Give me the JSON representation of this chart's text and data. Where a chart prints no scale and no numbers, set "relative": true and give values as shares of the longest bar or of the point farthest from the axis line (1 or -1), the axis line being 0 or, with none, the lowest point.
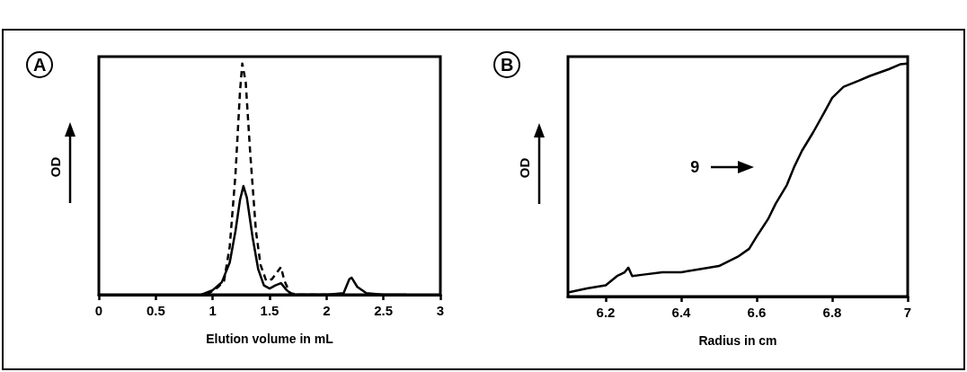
{
  "chart_data": [
    {
      "type": "line",
      "title": "A",
      "xlabel": "Elution volume in mL",
      "ylabel": "OD",
      "relative": true,
      "xlim": [
        0,
        3
      ],
      "xticks": [
        0,
        0.5,
        1,
        1.5,
        2,
        2.5,
        3
      ],
      "marker": "none",
      "grid": false,
      "series": [
        {
          "color": "#000000",
          "line_style": "solid",
          "x": [
            0.9,
            1.0,
            1.08,
            1.15,
            1.2,
            1.24,
            1.27,
            1.3,
            1.35,
            1.4,
            1.45,
            1.5,
            1.55,
            1.6,
            1.65,
            1.7,
            2.0,
            2.15,
            2.2,
            2.22,
            2.27,
            2.35,
            2.5,
            2.7
          ],
          "values": [
            0,
            0.02,
            0.054,
            0.14,
            0.275,
            0.41,
            0.47,
            0.42,
            0.25,
            0.11,
            0.04,
            0.027,
            0.04,
            0.05,
            0.02,
            0,
            0,
            0.007,
            0.067,
            0.074,
            0.034,
            0.007,
            0,
            0
          ]
        },
        {
          "color": "#000000",
          "line_style": "dashed",
          "x": [
            0.95,
            1.05,
            1.1,
            1.15,
            1.2,
            1.24,
            1.26,
            1.29,
            1.33,
            1.38,
            1.42,
            1.47,
            1.52,
            1.57,
            1.6,
            1.63,
            1.68,
            1.75,
            2.0
          ],
          "values": [
            0,
            0.034,
            0.06,
            0.21,
            0.52,
            0.88,
            1,
            0.92,
            0.61,
            0.275,
            0.13,
            0.06,
            0.067,
            0.1,
            0.12,
            0.06,
            0.007,
            0,
            0
          ]
        }
      ]
    },
    {
      "type": "line",
      "title": "B",
      "xlabel": "Radius in cm",
      "ylabel": "OD",
      "relative": true,
      "xlim": [
        6.1,
        7
      ],
      "xticks": [
        6.2,
        6.4,
        6.6,
        6.8,
        7
      ],
      "marker": "none",
      "grid": false,
      "annotations": [
        "9"
      ],
      "series": [
        {
          "color": "#000000",
          "line_style": "solid",
          "x": [
            6.1,
            6.15,
            6.2,
            6.23,
            6.25,
            6.26,
            6.27,
            6.3,
            6.35,
            6.4,
            6.45,
            6.5,
            6.55,
            6.58,
            6.6,
            6.63,
            6.65,
            6.68,
            6.7,
            6.72,
            6.75,
            6.78,
            6.8,
            6.83,
            6.87,
            6.9,
            6.95,
            6.98,
            7.0
          ],
          "values": [
            0.017,
            0.035,
            0.048,
            0.088,
            0.104,
            0.124,
            0.088,
            0.094,
            0.104,
            0.104,
            0.118,
            0.131,
            0.171,
            0.205,
            0.258,
            0.332,
            0.398,
            0.479,
            0.559,
            0.626,
            0.706,
            0.793,
            0.853,
            0.9,
            0.926,
            0.947,
            0.976,
            0.997,
            1
          ]
        }
      ]
    }
  ]
}
